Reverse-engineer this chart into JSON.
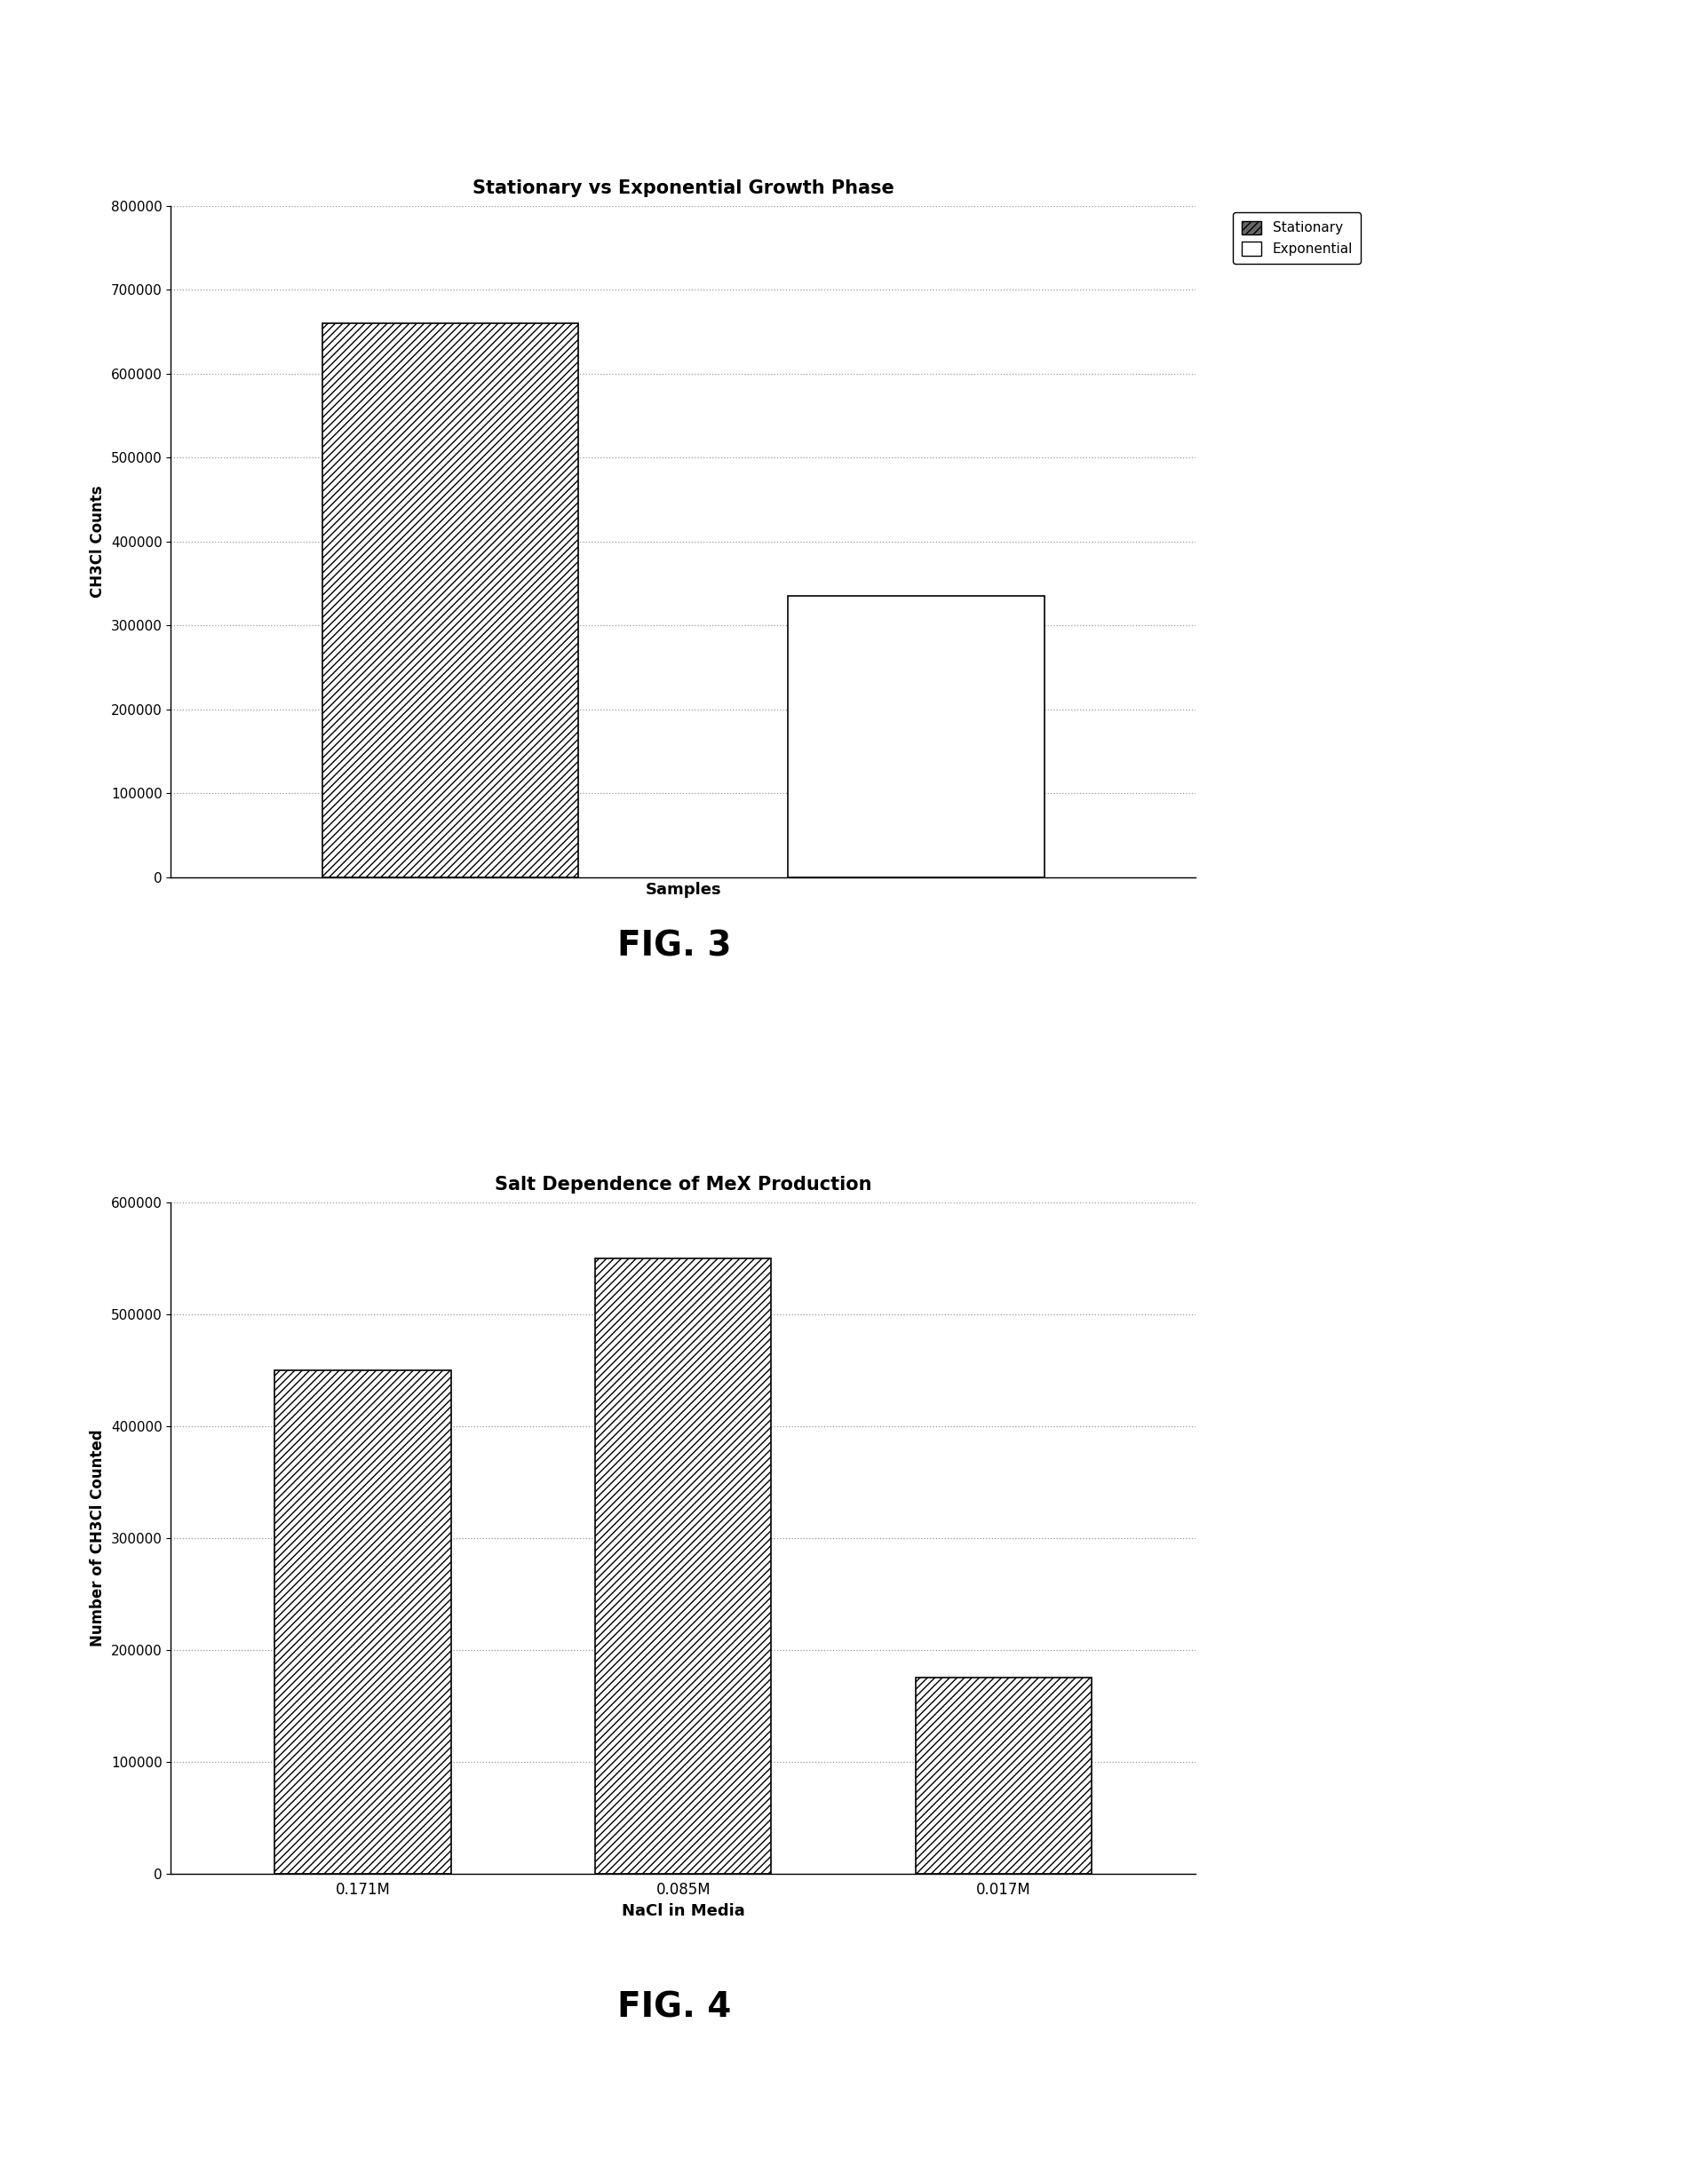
{
  "fig3": {
    "title": "Stationary vs Exponential Growth Phase",
    "bar1_label": "Stationary",
    "bar1_value": 660000,
    "bar2_label": "Exponential",
    "bar2_value": 335000,
    "xlabel": "Samples",
    "ylabel": "CH3Cl Counts",
    "ylim": [
      0,
      800000
    ],
    "yticks": [
      0,
      100000,
      200000,
      300000,
      400000,
      500000,
      600000,
      700000,
      800000
    ]
  },
  "fig4": {
    "title": "Salt Dependence of MeX Production",
    "categories": [
      "0.171M",
      "0.085M",
      "0.017M"
    ],
    "values": [
      450000,
      550000,
      175000
    ],
    "xlabel": "NaCl in Media",
    "ylabel": "Number of CH3Cl Counted",
    "ylim": [
      0,
      600000
    ],
    "yticks": [
      0,
      100000,
      200000,
      300000,
      400000,
      500000,
      600000
    ]
  },
  "hatch_pattern": "////",
  "bar_facecolor_hatched": "#ffffff",
  "bar_facecolor_empty": "#ffffff",
  "bar_edgecolor": "#000000",
  "grid_color": "#999999",
  "fig3_label": "FIG. 3",
  "fig4_label": "FIG. 4",
  "background_color": "#ffffff",
  "text_color": "#000000"
}
